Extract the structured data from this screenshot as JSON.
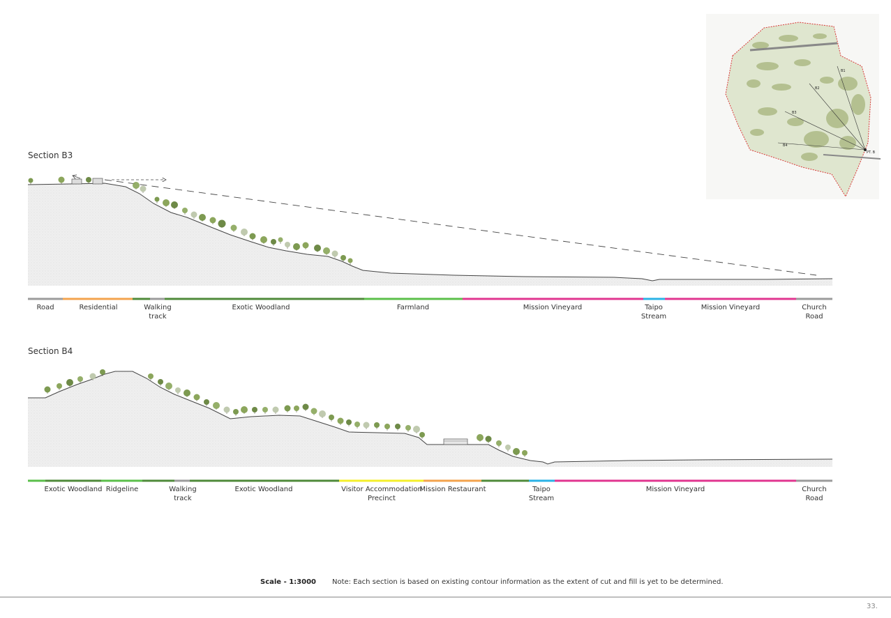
{
  "colors": {
    "road": "#9b9b9b",
    "residential": "#f3a34d",
    "walking_track": "#4f8a3a",
    "exotic_woodland": "#4f8a3a",
    "farmland": "#5bbf4a",
    "ridgeline": "#5bbf4a",
    "mission_vineyard": "#e0358f",
    "stream": "#2ab2e6",
    "visitor_accommodation": "#f4ef2a",
    "restaurant": "#f3a34d",
    "ground_fill": "#ececec",
    "ground_line": "#444444",
    "tree": "#6f8f3e"
  },
  "sections": [
    {
      "title": "Section B3",
      "zones": [
        {
          "label": "Road",
          "color_key": "road"
        },
        {
          "label": "Residential",
          "color_key": "residential"
        },
        {
          "label": "",
          "color_key": "walking_track"
        },
        {
          "label": "Walking\ntrack",
          "color_key": "road"
        },
        {
          "label": "Exotic Woodland",
          "color_key": "exotic_woodland"
        },
        {
          "label": "Farmland",
          "color_key": "farmland"
        },
        {
          "label": "Mission Vineyard",
          "color_key": "mission_vineyard"
        },
        {
          "label": "Taipo\nStream",
          "color_key": "stream"
        },
        {
          "label": "Mission Vineyard",
          "color_key": "mission_vineyard"
        },
        {
          "label": "Church\nRoad",
          "color_key": "road"
        }
      ]
    },
    {
      "title": "Section B4",
      "zones": [
        {
          "label": "",
          "color_key": "farmland"
        },
        {
          "label": "Exotic Woodland",
          "color_key": "exotic_woodland"
        },
        {
          "label": "Ridgeline",
          "color_key": "ridgeline"
        },
        {
          "label": "",
          "color_key": "exotic_woodland"
        },
        {
          "label": "Walking\ntrack",
          "color_key": "road"
        },
        {
          "label": "Exotic Woodland",
          "color_key": "exotic_woodland"
        },
        {
          "label": "Visitor Accommodation\nPrecinct",
          "color_key": "visitor_accommodation"
        },
        {
          "label": "Mission Restaurant",
          "color_key": "restaurant"
        },
        {
          "label": "",
          "color_key": "exotic_woodland"
        },
        {
          "label": "Taipo\nStream",
          "color_key": "stream"
        },
        {
          "label": "Mission Vineyard",
          "color_key": "mission_vineyard"
        },
        {
          "label": "Church\nRoad",
          "color_key": "road"
        }
      ]
    }
  ],
  "map": {
    "labels": [
      "B1",
      "B2",
      "B3",
      "B4",
      "PT. B"
    ]
  },
  "footer": {
    "scale": "Scale - 1:3000",
    "note": "Note: Each section is based on existing contour information as the extent of cut and fill is yet to be determined.",
    "page_number": "33."
  }
}
